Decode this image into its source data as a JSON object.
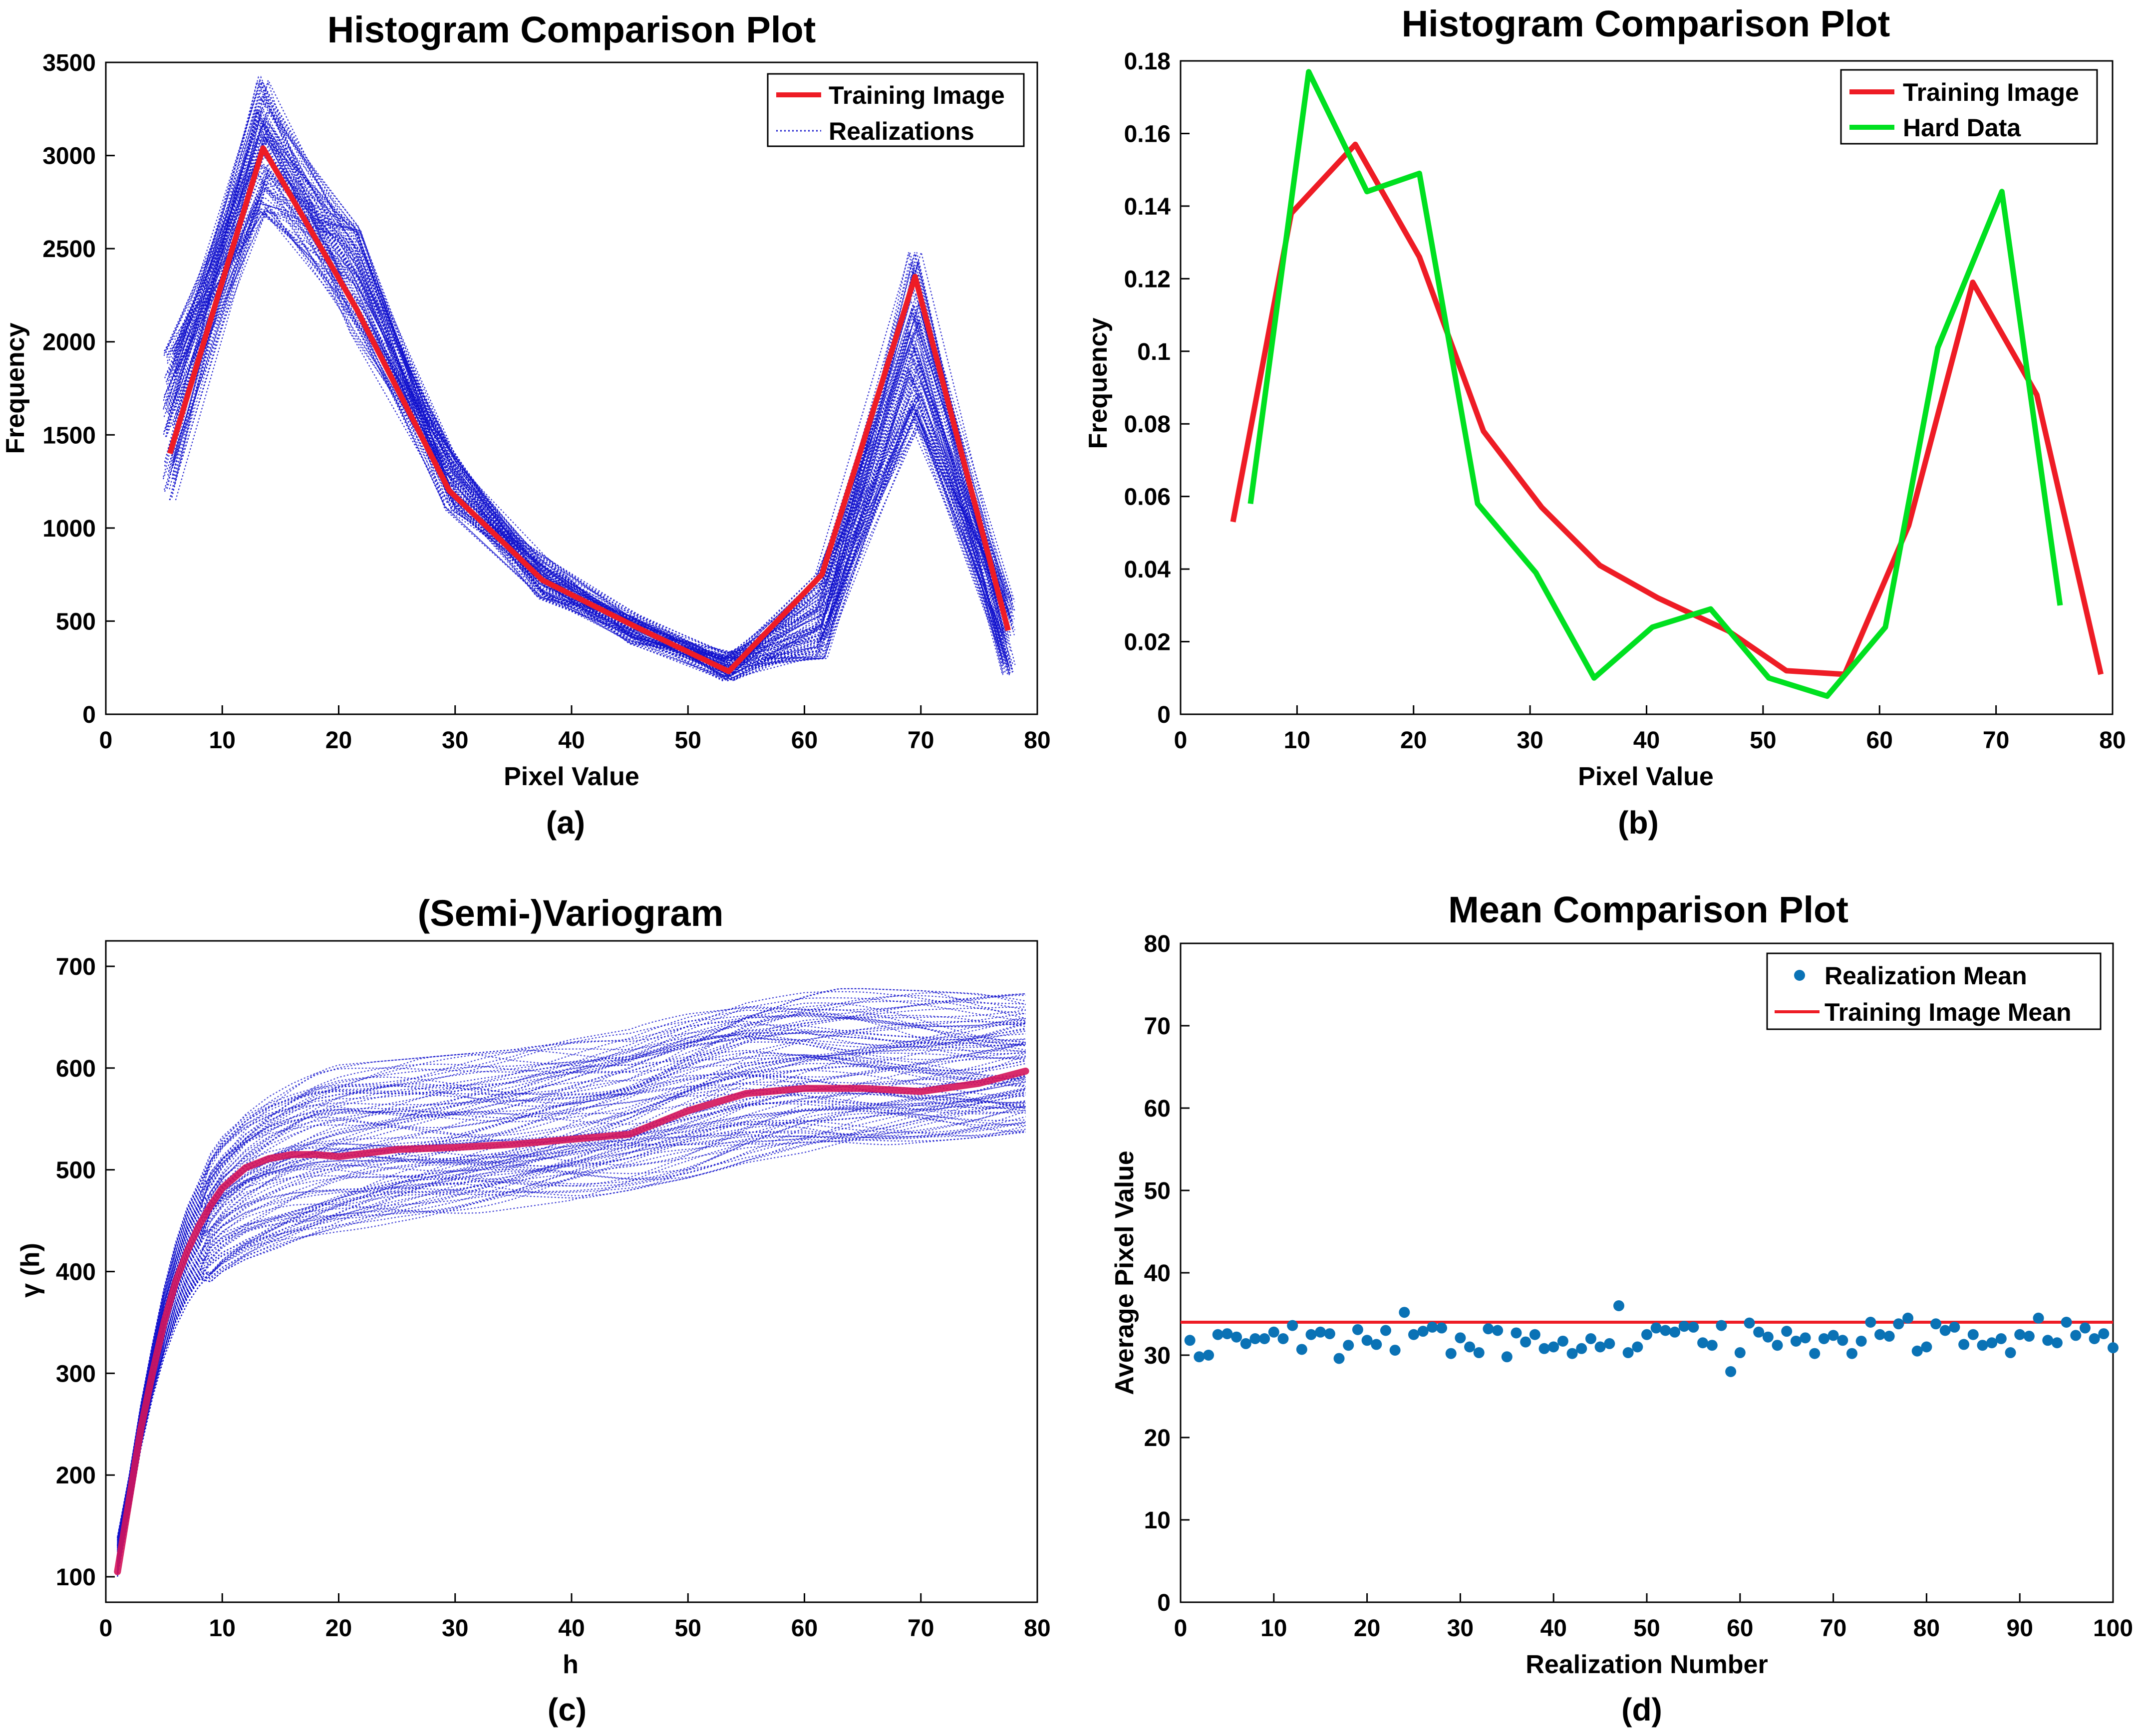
{
  "figure": {
    "panel_labels": [
      "(a)",
      "(b)",
      "(c)",
      "(d)"
    ]
  },
  "colors": {
    "training": "#ee1c25",
    "realizations": "#1010cc",
    "hard_data": "#00e020",
    "scatter": "#0a72b5",
    "axis": "#000000"
  },
  "chart_data": [
    {
      "id": "a",
      "type": "line",
      "title": "Histogram Comparison Plot",
      "xlabel": "Pixel Value",
      "ylabel": "Frequency",
      "xlim": [
        0,
        80
      ],
      "ylim": [
        0,
        3500
      ],
      "xticks": [
        0,
        10,
        20,
        30,
        40,
        50,
        60,
        70,
        80
      ],
      "yticks": [
        0,
        500,
        1000,
        1500,
        2000,
        2500,
        3000,
        3500
      ],
      "legend": [
        "Training Image",
        "Realizations"
      ],
      "legend_position": "top-right",
      "series": [
        {
          "name": "Training Image",
          "x": [
            5.5,
            13.5,
            21.5,
            29.5,
            37.5,
            45.5,
            53.5,
            61.5,
            69.5,
            77.5
          ],
          "y": [
            1400,
            3040,
            2180,
            1200,
            720,
            470,
            230,
            750,
            2350,
            450
          ]
        }
      ],
      "realizations": {
        "name": "Realizations",
        "count": 100,
        "spread_min": [
          1150,
          2700,
          2050,
          1100,
          620,
          380,
          180,
          300,
          1550,
          210
        ],
        "spread_max": [
          1950,
          3420,
          2620,
          1400,
          840,
          530,
          330,
          760,
          2480,
          620
        ]
      }
    },
    {
      "id": "b",
      "type": "line",
      "title": "Histogram Comparison Plot",
      "xlabel": "Pixel Value",
      "ylabel": "Frequency",
      "xlim": [
        0,
        80
      ],
      "ylim": [
        0,
        0.18
      ],
      "xticks": [
        0,
        10,
        20,
        30,
        40,
        50,
        60,
        70,
        80
      ],
      "yticks": [
        0,
        0.02,
        0.04,
        0.06,
        0.08,
        0.1,
        0.12,
        0.14,
        0.16,
        0.18
      ],
      "legend": [
        "Training Image",
        "Hard Data"
      ],
      "legend_position": "top-right",
      "series": [
        {
          "name": "Training Image",
          "x": [
            4.5,
            9.5,
            15,
            20.5,
            26,
            31,
            36,
            41,
            47,
            52,
            57,
            62.5,
            68,
            73.5,
            79
          ],
          "y": [
            0.053,
            0.138,
            0.157,
            0.126,
            0.078,
            0.057,
            0.041,
            0.032,
            0.023,
            0.012,
            0.011,
            0.052,
            0.119,
            0.088,
            0.011
          ]
        },
        {
          "name": "Hard Data",
          "x": [
            6,
            11,
            16,
            20.5,
            25.5,
            30.5,
            35.5,
            40.5,
            45.5,
            50.5,
            55.5,
            60.5,
            65,
            70.5,
            75.5
          ],
          "y": [
            0.058,
            0.177,
            0.144,
            0.149,
            0.058,
            0.039,
            0.01,
            0.024,
            0.029,
            0.01,
            0.005,
            0.024,
            0.101,
            0.144,
            0.03
          ]
        }
      ]
    },
    {
      "id": "c",
      "type": "line",
      "title": "(Semi-)Variogram",
      "xlabel": "h",
      "ylabel": "γ (h)",
      "xlim": [
        0,
        80
      ],
      "ylim": [
        75,
        725
      ],
      "xticks": [
        0,
        10,
        20,
        30,
        40,
        50,
        60,
        70,
        80
      ],
      "yticks": [
        100,
        200,
        300,
        400,
        500,
        600,
        700
      ],
      "series": [
        {
          "name": "Training Image",
          "x": [
            1,
            2,
            3,
            4,
            5,
            6,
            7,
            8,
            9,
            10,
            12,
            14,
            16,
            18,
            20,
            25,
            30,
            35,
            40,
            45,
            50,
            55,
            60,
            65,
            70,
            75,
            79
          ],
          "y": [
            105,
            175,
            245,
            300,
            350,
            390,
            420,
            445,
            465,
            482,
            502,
            511,
            515,
            515,
            513,
            520,
            522,
            525,
            530,
            535,
            558,
            575,
            580,
            580,
            577,
            585,
            597
          ]
        }
      ],
      "realizations": {
        "name": "Realizations",
        "count": 100,
        "spread_min_h": [
          1,
          2,
          3,
          4,
          5,
          6,
          7,
          8,
          9,
          10,
          12,
          14,
          16,
          18,
          20,
          25,
          30,
          35,
          40,
          45,
          50,
          55,
          60,
          65,
          70,
          75,
          79
        ],
        "spread_min": [
          100,
          160,
          225,
          275,
          315,
          345,
          368,
          385,
          398,
          408,
          420,
          428,
          435,
          440,
          445,
          455,
          462,
          470,
          478,
          488,
          500,
          515,
          525,
          530,
          535,
          540,
          545
        ],
        "spread_max": [
          140,
          200,
          270,
          330,
          385,
          430,
          465,
          490,
          510,
          528,
          552,
          568,
          580,
          590,
          595,
          600,
          605,
          610,
          620,
          630,
          650,
          665,
          670,
          670,
          668,
          665,
          665
        ]
      }
    },
    {
      "id": "d",
      "type": "scatter",
      "title": "Mean Comparison Plot",
      "xlabel": "Realization Number",
      "ylabel": "Average Pixel Value",
      "xlim": [
        0,
        100
      ],
      "ylim": [
        0,
        80
      ],
      "xticks": [
        0,
        10,
        20,
        30,
        40,
        50,
        60,
        70,
        80,
        90,
        100
      ],
      "yticks": [
        0,
        10,
        20,
        30,
        40,
        50,
        60,
        70,
        80
      ],
      "legend": [
        "Realization Mean",
        "Training Image Mean"
      ],
      "legend_position": "top-right",
      "training_mean": 34,
      "x": [
        1,
        2,
        3,
        4,
        5,
        6,
        7,
        8,
        9,
        10,
        11,
        12,
        13,
        14,
        15,
        16,
        17,
        18,
        19,
        20,
        21,
        22,
        23,
        24,
        25,
        26,
        27,
        28,
        29,
        30,
        31,
        32,
        33,
        34,
        35,
        36,
        37,
        38,
        39,
        40,
        41,
        42,
        43,
        44,
        45,
        46,
        47,
        48,
        49,
        50,
        51,
        52,
        53,
        54,
        55,
        56,
        57,
        58,
        59,
        60,
        61,
        62,
        63,
        64,
        65,
        66,
        67,
        68,
        69,
        70,
        71,
        72,
        73,
        74,
        75,
        76,
        77,
        78,
        79,
        80,
        81,
        82,
        83,
        84,
        85,
        86,
        87,
        88,
        89,
        90,
        91,
        92,
        93,
        94,
        95,
        96,
        97,
        98,
        99,
        100
      ],
      "y": [
        31.8,
        29.8,
        30.0,
        32.5,
        32.6,
        32.2,
        31.4,
        32.0,
        32.0,
        32.8,
        32.0,
        33.6,
        30.7,
        32.5,
        32.8,
        32.6,
        29.6,
        31.2,
        33.1,
        31.8,
        31.3,
        33.0,
        30.6,
        35.2,
        32.5,
        32.9,
        33.4,
        33.3,
        30.2,
        32.1,
        31.0,
        30.3,
        33.2,
        33.0,
        29.8,
        32.7,
        31.6,
        32.5,
        30.8,
        31.0,
        31.7,
        30.2,
        30.8,
        32.0,
        31.0,
        31.4,
        36.0,
        30.3,
        31.0,
        32.5,
        33.3,
        33.0,
        32.8,
        33.5,
        33.4,
        31.5,
        31.2,
        33.6,
        28.0,
        30.3,
        33.9,
        32.8,
        32.2,
        31.2,
        32.9,
        31.7,
        32.1,
        30.2,
        32.0,
        32.4,
        31.8,
        30.2,
        31.7,
        34.0,
        32.5,
        32.3,
        33.8,
        34.5,
        30.5,
        31.0,
        33.8,
        33.0,
        33.4,
        31.3,
        32.5,
        31.2,
        31.5,
        32.0,
        30.3,
        32.5,
        32.3,
        34.5,
        31.8,
        31.5,
        34.0,
        32.4,
        33.3,
        32.0,
        32.6,
        30.9
      ]
    }
  ]
}
